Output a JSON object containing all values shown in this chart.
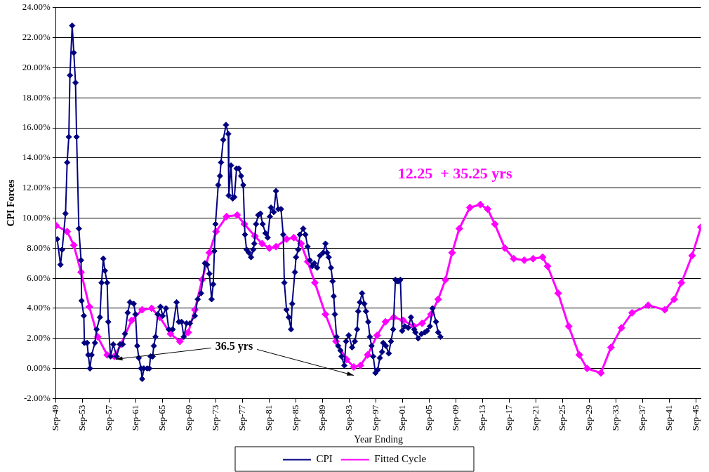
{
  "chart_data": {
    "type": "line",
    "xlabel": "Year Ending",
    "ylabel": "CPI Forces",
    "xlim": [
      "1949-09",
      "2046-06"
    ],
    "xticks": [
      {
        "value": "1949-09",
        "label": "Sep-49"
      },
      {
        "value": "1953-09",
        "label": "Sep-53"
      },
      {
        "value": "1957-09",
        "label": "Sep-57"
      },
      {
        "value": "1961-09",
        "label": "Sep-61"
      },
      {
        "value": "1965-09",
        "label": "Sep-65"
      },
      {
        "value": "1969-09",
        "label": "Sep-69"
      },
      {
        "value": "1973-09",
        "label": "Sep-73"
      },
      {
        "value": "1977-09",
        "label": "Sep-77"
      },
      {
        "value": "1981-09",
        "label": "Sep-81"
      },
      {
        "value": "1985-09",
        "label": "Sep-85"
      },
      {
        "value": "1989-09",
        "label": "Sep-89"
      },
      {
        "value": "1993-09",
        "label": "Sep-93"
      },
      {
        "value": "1997-09",
        "label": "Sep-97"
      },
      {
        "value": "2001-09",
        "label": "Sep-01"
      },
      {
        "value": "2005-09",
        "label": "Sep-05"
      },
      {
        "value": "2009-09",
        "label": "Sep-09"
      },
      {
        "value": "2013-09",
        "label": "Sep-13"
      },
      {
        "value": "2017-09",
        "label": "Sep-17"
      },
      {
        "value": "2021-09",
        "label": "Sep-21"
      },
      {
        "value": "2025-09",
        "label": "Sep-25"
      },
      {
        "value": "2029-09",
        "label": "Sep-29"
      },
      {
        "value": "2033-09",
        "label": "Sep-33"
      },
      {
        "value": "2037-09",
        "label": "Sep-37"
      },
      {
        "value": "2041-09",
        "label": "Sep-41"
      },
      {
        "value": "2045-09",
        "label": "Sep-45"
      }
    ],
    "ylim": [
      -2,
      24
    ],
    "yticks": [
      {
        "value": -2,
        "label": "-2.00%"
      },
      {
        "value": 0,
        "label": "0.00%"
      },
      {
        "value": 2,
        "label": "2.00%"
      },
      {
        "value": 4,
        "label": "4.00%"
      },
      {
        "value": 6,
        "label": "6.00%"
      },
      {
        "value": 8,
        "label": "8.00%"
      },
      {
        "value": 10,
        "label": "10.00%"
      },
      {
        "value": 12,
        "label": "12.00%"
      },
      {
        "value": 14,
        "label": "14.00%"
      },
      {
        "value": 16,
        "label": "16.00%"
      },
      {
        "value": 18,
        "label": "18.00%"
      },
      {
        "value": 20,
        "label": "20.00%"
      },
      {
        "value": 22,
        "label": "22.00%"
      },
      {
        "value": 24,
        "label": "24.00%"
      }
    ],
    "grid": "y",
    "legend": "bottom",
    "marker": "diamond",
    "line_style": "solid",
    "annotations": [
      {
        "text": "36.5 yrs",
        "x": "1958-06",
        "y": 0.8
      },
      "12.25  + 35.25 yrs"
    ],
    "series": [
      {
        "name": "CPI",
        "color": "#000080",
        "x": [
          "1949-11",
          "1950-05",
          "1950-08",
          "1951-02",
          "1951-05",
          "1951-08",
          "1951-10",
          "1952-02",
          "1952-05",
          "1952-08",
          "1952-10",
          "1953-02",
          "1953-06",
          "1953-07",
          "1953-11",
          "1953-12",
          "1954-05",
          "1954-07",
          "1954-10",
          "1955-01",
          "1955-07",
          "1955-10",
          "1956-04",
          "1956-07",
          "1956-10",
          "1957-01",
          "1957-05",
          "1957-07",
          "1957-11",
          "1958-04",
          "1958-10",
          "1959-04",
          "1959-09",
          "1960-01",
          "1960-06",
          "1960-10",
          "1961-05",
          "1961-08",
          "1961-11",
          "1962-02",
          "1962-06",
          "1962-08",
          "1962-11",
          "1963-05",
          "1963-09",
          "1963-11",
          "1964-03",
          "1964-05",
          "1964-08",
          "1964-12",
          "1965-05",
          "1965-09",
          "1966-03",
          "1966-08",
          "1967-03",
          "1967-10",
          "1968-02",
          "1968-07",
          "1968-11",
          "1969-04",
          "1969-10",
          "1970-07",
          "1970-12",
          "1971-06",
          "1972-01",
          "1972-05",
          "1972-09",
          "1973-01",
          "1973-04",
          "1973-06",
          "1973-08",
          "1974-01",
          "1974-04",
          "1974-06",
          "1974-10",
          "1975-03",
          "1975-07",
          "1975-08",
          "1975-12",
          "1976-03",
          "1976-06",
          "1976-10",
          "1977-02",
          "1977-06",
          "1977-10",
          "1978-01",
          "1978-04",
          "1978-08",
          "1978-12",
          "1979-04",
          "1979-06",
          "1979-09",
          "1980-01",
          "1980-05",
          "1980-09",
          "1981-02",
          "1981-06",
          "1981-10",
          "1981-12",
          "1982-05",
          "1982-09",
          "1983-01",
          "1983-06",
          "1983-10",
          "1983-12",
          "1984-04",
          "1984-08",
          "1984-12",
          "1985-02",
          "1985-07",
          "1985-09",
          "1986-01",
          "1986-04",
          "1986-10",
          "1987-02",
          "1987-06",
          "1987-10",
          "1988-02",
          "1988-06",
          "1988-11",
          "1989-04",
          "1989-10",
          "1990-02",
          "1990-05",
          "1990-08",
          "1990-12",
          "1991-03",
          "1991-05",
          "1991-07",
          "1991-10",
          "1992-01",
          "1992-05",
          "1992-07",
          "1992-12",
          "1993-03",
          "1993-08",
          "1994-02",
          "1994-07",
          "1994-11",
          "1995-01",
          "1995-04",
          "1995-08",
          "1995-12",
          "1996-03",
          "1996-07",
          "1996-10",
          "1997-01",
          "1997-04",
          "1997-08",
          "1997-12",
          "1998-04",
          "1998-08",
          "1998-10",
          "1999-03",
          "1999-08",
          "1999-12",
          "2000-04",
          "2000-08",
          "2000-11",
          "2001-02",
          "2001-05",
          "2001-08",
          "2002-01",
          "2002-07",
          "2002-12",
          "2003-06",
          "2003-08",
          "2004-01",
          "2004-07",
          "2005-01",
          "2005-05",
          "2005-10",
          "2006-03",
          "2006-09",
          "2007-01",
          "2007-05"
        ],
        "values": [
          8.6,
          6.9,
          7.9,
          10.3,
          13.7,
          15.4,
          19.5,
          22.8,
          21.0,
          19.0,
          15.4,
          9.3,
          7.2,
          4.5,
          3.5,
          1.7,
          1.7,
          0.9,
          0.0,
          0.9,
          1.7,
          2.6,
          3.4,
          5.7,
          7.3,
          6.5,
          5.7,
          3.1,
          0.8,
          1.6,
          0.8,
          1.6,
          1.6,
          2.3,
          3.7,
          4.4,
          4.3,
          3.6,
          1.5,
          0.7,
          0.0,
          -0.7,
          0.0,
          0.0,
          0.0,
          0.8,
          0.8,
          1.5,
          2.1,
          3.6,
          4.1,
          3.5,
          4.0,
          2.6,
          2.6,
          4.4,
          3.1,
          3.1,
          2.1,
          3.0,
          3.0,
          3.5,
          4.6,
          5.0,
          7.0,
          6.9,
          6.3,
          4.6,
          5.6,
          7.8,
          9.6,
          12.2,
          12.8,
          13.7,
          15.2,
          16.2,
          15.6,
          11.5,
          13.5,
          11.3,
          11.4,
          13.3,
          13.3,
          12.8,
          12.2,
          8.9,
          7.9,
          7.7,
          7.4,
          7.9,
          8.3,
          9.6,
          10.2,
          10.3,
          9.6,
          9.0,
          8.7,
          10.1,
          10.7,
          10.4,
          11.8,
          10.6,
          10.6,
          8.9,
          5.7,
          3.9,
          3.4,
          2.6,
          4.3,
          6.4,
          7.4,
          7.9,
          8.9,
          9.3,
          8.9,
          8.1,
          7.2,
          6.8,
          7.0,
          6.7,
          7.5,
          7.7,
          8.3,
          7.7,
          7.4,
          6.7,
          5.8,
          4.8,
          3.6,
          2.1,
          1.5,
          1.2,
          0.8,
          0.2,
          1.8,
          2.2,
          1.4,
          1.8,
          2.6,
          3.8,
          4.4,
          5.0,
          4.3,
          3.8,
          3.1,
          2.1,
          1.5,
          0.8,
          -0.3,
          -0.1,
          0.7,
          1.1,
          1.7,
          1.5,
          1.0,
          1.8,
          2.6,
          5.9,
          5.8,
          5.8,
          5.9,
          2.5,
          2.8,
          2.7,
          3.4,
          2.6,
          2.4,
          2.0,
          2.3,
          2.4,
          2.5,
          2.8,
          4.0,
          3.1,
          2.4,
          2.1
        ]
      },
      {
        "name": "Fitted Cycle",
        "color": "#ff00ff",
        "x": [
          "1949-09",
          "1951-05",
          "1952-05",
          "1953-06",
          "1954-09",
          "1955-12",
          "1957-05",
          "1958-06",
          "1959-06",
          "1961-01",
          "1962-08",
          "1964-01",
          "1965-04",
          "1966-11",
          "1968-04",
          "1969-07",
          "1970-07",
          "1971-08",
          "1972-09",
          "1973-09",
          "1975-04",
          "1976-11",
          "1977-12",
          "1979-07",
          "1980-08",
          "1981-09",
          "1982-09",
          "1984-04",
          "1985-05",
          "1986-06",
          "1987-06",
          "1988-07",
          "1990-02",
          "1991-09",
          "1993-04",
          "1994-05",
          "1995-05",
          "1996-06",
          "1997-11",
          "1999-02",
          "2000-05",
          "2001-10",
          "2003-05",
          "2004-08",
          "2005-12",
          "2007-01",
          "2008-02",
          "2009-02",
          "2010-03",
          "2011-10",
          "2013-05",
          "2014-06",
          "2015-07",
          "2017-01",
          "2018-05",
          "2019-12",
          "2021-04",
          "2022-09",
          "2023-06",
          "2025-01",
          "2026-08",
          "2028-03",
          "2029-05",
          "2031-06",
          "2032-12",
          "2034-07",
          "2036-02",
          "2038-07",
          "2041-01",
          "2042-06",
          "2043-07",
          "2045-02",
          "2046-06"
        ],
        "values": [
          9.5,
          9.1,
          8.2,
          6.4,
          4.1,
          2.1,
          0.9,
          0.8,
          1.6,
          3.2,
          3.9,
          4.0,
          3.4,
          2.3,
          1.8,
          2.4,
          3.9,
          5.9,
          7.7,
          9.1,
          10.1,
          10.2,
          9.6,
          8.8,
          8.3,
          8.0,
          8.1,
          8.6,
          8.7,
          8.3,
          7.1,
          5.7,
          3.6,
          1.8,
          0.6,
          0.1,
          0.2,
          0.9,
          2.2,
          3.1,
          3.4,
          3.2,
          2.8,
          3.0,
          3.6,
          4.6,
          5.9,
          7.7,
          9.3,
          10.7,
          10.9,
          10.6,
          9.6,
          8.0,
          7.3,
          7.2,
          7.3,
          7.4,
          6.8,
          5.0,
          2.8,
          0.9,
          0.0,
          -0.3,
          1.4,
          2.7,
          3.7,
          4.2,
          3.9,
          4.6,
          5.7,
          7.5,
          9.4
        ]
      }
    ]
  }
}
